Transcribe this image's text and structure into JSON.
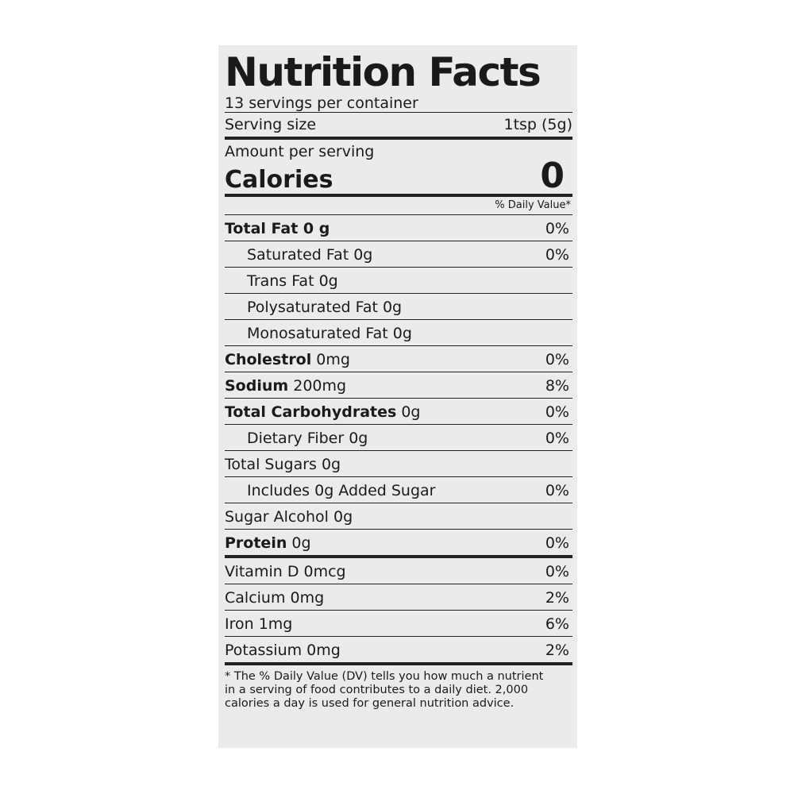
{
  "title": "Nutrition Facts",
  "servings_per_container": "13 servings per container",
  "serving_size": {
    "label": "Serving size",
    "value": "1tsp (5g)"
  },
  "amount_per_serving": "Amount per serving",
  "calories": {
    "label": "Calories",
    "value": "0"
  },
  "daily_value_header": "% Daily Value*",
  "rows": [
    {
      "name": "Total Fat 0 g",
      "bold": "Total Fat 0 g",
      "rest": "",
      "dv": "0%"
    },
    {
      "name": "Saturated Fat 0g",
      "bold": "",
      "rest": "Saturated Fat 0g",
      "dv": "0%"
    },
    {
      "name": "Trans Fat 0g",
      "bold": "",
      "rest": "Trans Fat 0g",
      "dv": ""
    },
    {
      "name": "Polysaturated Fat 0g",
      "bold": "",
      "rest": "Polysaturated Fat 0g",
      "dv": ""
    },
    {
      "name": "Monosaturated Fat 0g",
      "bold": "",
      "rest": "Monosaturated Fat 0g",
      "dv": ""
    },
    {
      "name": "Cholestrol 0mg",
      "bold": "Cholestrol",
      "rest": " 0mg",
      "dv": "0%"
    },
    {
      "name": "Sodium 200mg",
      "bold": "Sodium",
      "rest": " 200mg",
      "dv": "8%"
    },
    {
      "name": "Total Carbohydrates 0g",
      "bold": "Total Carbohydrates",
      "rest": " 0g",
      "dv": "0%"
    },
    {
      "name": "Dietary Fiber 0g",
      "bold": "",
      "rest": "Dietary Fiber 0g",
      "dv": "0%"
    },
    {
      "name": "Total Sugars 0g",
      "bold": "",
      "rest": "Total Sugars 0g",
      "dv": ""
    },
    {
      "name": "Includes 0g Added Sugar",
      "bold": "",
      "rest": "Includes 0g Added Sugar",
      "dv": "0%"
    },
    {
      "name": "Sugar Alcohol 0g",
      "bold": "",
      "rest": "Sugar Alcohol 0g",
      "dv": ""
    },
    {
      "name": "Protein 0g",
      "bold": "Protein",
      "rest": " 0g",
      "dv": "0%"
    },
    {
      "name": "Vitamin D 0mcg",
      "bold": "",
      "rest": "Vitamin D 0mcg",
      "dv": "0%"
    },
    {
      "name": "Calcium 0mg",
      "bold": "",
      "rest": "Calcium 0mg",
      "dv": "2%"
    },
    {
      "name": "Iron 1mg",
      "bold": "",
      "rest": "Iron 1mg",
      "dv": "6%"
    },
    {
      "name": "Potassium 0mg",
      "bold": "",
      "rest": "Potassium 0mg",
      "dv": "2%"
    }
  ],
  "footnote": "* The % Daily Value (DV) tells you how much a nutrient in a serving of food contributes to a daily diet. 2,000 calories a day is used for general nutrition advice."
}
